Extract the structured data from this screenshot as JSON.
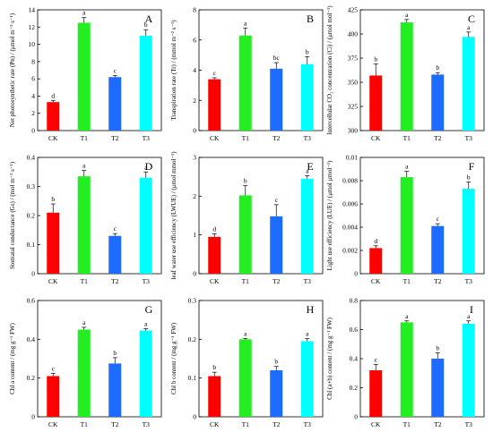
{
  "figure": {
    "categories": [
      "CK",
      "T1",
      "T2",
      "T3"
    ],
    "bar_colors": [
      "#ff0000",
      "#22ee22",
      "#1e6bff",
      "#00ffff"
    ]
  },
  "chart_data": [
    {
      "panel": "A",
      "type": "bar",
      "ylabel": "Net photosynthetic rate (Pn) / (μmol m⁻² s⁻¹)",
      "ylim": [
        0,
        14
      ],
      "yticks": [
        0,
        2,
        4,
        6,
        8,
        10,
        12,
        14
      ],
      "tick_labels": [
        "0",
        "2",
        "4",
        "6",
        "8",
        "10",
        "12",
        "14"
      ],
      "categories": [
        "CK",
        "T1",
        "T2",
        "T3"
      ],
      "values": [
        3.3,
        12.5,
        6.2,
        11.0
      ],
      "errors": [
        0.2,
        0.6,
        0.2,
        0.7
      ],
      "letters": [
        "d",
        "a",
        "c",
        "b"
      ]
    },
    {
      "panel": "B",
      "type": "bar",
      "ylabel": "Transpiration rate (Tr) / (mmol m⁻² s⁻¹)",
      "ylim": [
        0,
        8
      ],
      "yticks": [
        0,
        2,
        4,
        6,
        8
      ],
      "tick_labels": [
        "0",
        "2",
        "4",
        "6",
        "8"
      ],
      "categories": [
        "CK",
        "T1",
        "T2",
        "T3"
      ],
      "values": [
        3.4,
        6.3,
        4.1,
        4.4
      ],
      "errors": [
        0.1,
        0.5,
        0.4,
        0.5
      ],
      "letters": [
        "c",
        "a",
        "bc",
        "b"
      ]
    },
    {
      "panel": "C",
      "type": "bar",
      "ylabel": "Intercellular CO₂ concentration (Ci) / (μmol mol⁻¹)",
      "ylim": [
        300,
        425
      ],
      "yticks": [
        300,
        325,
        350,
        375,
        400,
        425
      ],
      "tick_labels": [
        "300",
        "325",
        "350",
        "375",
        "400",
        "425"
      ],
      "categories": [
        "CK",
        "T1",
        "T2",
        "T3"
      ],
      "values": [
        357,
        412,
        358,
        397
      ],
      "errors": [
        12,
        3,
        2,
        5
      ],
      "letters": [
        "b",
        "a",
        "b",
        "a"
      ]
    },
    {
      "panel": "D",
      "type": "bar",
      "ylabel": "Stomatal conductance (Gs) / (mol m⁻² s⁻¹)",
      "ylim": [
        0,
        0.4
      ],
      "yticks": [
        0,
        0.1,
        0.2,
        0.3,
        0.4
      ],
      "tick_labels": [
        "0",
        "0.1",
        "0.2",
        "0.3",
        "0.4"
      ],
      "categories": [
        "CK",
        "T1",
        "T2",
        "T3"
      ],
      "values": [
        0.21,
        0.335,
        0.13,
        0.33
      ],
      "errors": [
        0.03,
        0.02,
        0.008,
        0.02
      ],
      "letters": [
        "b",
        "a",
        "c",
        "a"
      ]
    },
    {
      "panel": "E",
      "type": "bar",
      "ylabel": "leaf water use efficiency (LWUE) / (μmol mmol⁻¹)",
      "ylim": [
        0,
        3
      ],
      "yticks": [
        0,
        1,
        2,
        3
      ],
      "tick_labels": [
        "0",
        "1",
        "2",
        "3"
      ],
      "categories": [
        "CK",
        "T1",
        "T2",
        "T3"
      ],
      "values": [
        0.95,
        2.02,
        1.48,
        2.45
      ],
      "errors": [
        0.08,
        0.25,
        0.3,
        0.08
      ],
      "letters": [
        "d",
        "b",
        "c",
        "a"
      ]
    },
    {
      "panel": "F",
      "type": "bar",
      "ylabel": "Light use efficiency (LUE) / (μmol μmol⁻¹)",
      "ylim": [
        0,
        0.01
      ],
      "yticks": [
        0,
        0.002,
        0.004,
        0.006,
        0.008,
        0.01
      ],
      "tick_labels": [
        "0",
        "0.002",
        "0.004",
        "0.006",
        "0.008",
        "0.01"
      ],
      "categories": [
        "CK",
        "T1",
        "T2",
        "T3"
      ],
      "values": [
        0.0022,
        0.0083,
        0.0041,
        0.0073
      ],
      "errors": [
        0.0002,
        0.0005,
        0.0002,
        0.0006
      ],
      "letters": [
        "d",
        "a",
        "c",
        "b"
      ]
    },
    {
      "panel": "G",
      "type": "bar",
      "ylabel": "Chl a content / (mg g⁻¹ FW)",
      "ylim": [
        0,
        0.6
      ],
      "yticks": [
        0,
        0.2,
        0.4,
        0.6
      ],
      "tick_labels": [
        "0",
        "0.2",
        "0.4",
        "0.6"
      ],
      "categories": [
        "CK",
        "T1",
        "T2",
        "T3"
      ],
      "values": [
        0.21,
        0.45,
        0.275,
        0.445
      ],
      "errors": [
        0.015,
        0.012,
        0.03,
        0.01
      ],
      "letters": [
        "c",
        "a",
        "b",
        "a"
      ]
    },
    {
      "panel": "H",
      "type": "bar",
      "ylabel": "Chl b content / (mg g⁻¹ FW)",
      "ylim": [
        0,
        0.3
      ],
      "yticks": [
        0,
        0.1,
        0.2,
        0.3
      ],
      "tick_labels": [
        "0",
        "0.1",
        "0.2",
        "0.3"
      ],
      "categories": [
        "CK",
        "T1",
        "T2",
        "T3"
      ],
      "values": [
        0.105,
        0.2,
        0.12,
        0.195
      ],
      "errors": [
        0.01,
        0.002,
        0.01,
        0.007
      ],
      "letters": [
        "b",
        "a",
        "b",
        "a"
      ]
    },
    {
      "panel": "I",
      "type": "bar",
      "ylabel": "Chl (a+b) content / (mg g⁻¹ FW)",
      "ylim": [
        0,
        0.8
      ],
      "yticks": [
        0,
        0.2,
        0.4,
        0.6,
        0.8
      ],
      "tick_labels": [
        "0",
        "0.2",
        "0.4",
        "0.6",
        "0.8"
      ],
      "categories": [
        "CK",
        "T1",
        "T2",
        "T3"
      ],
      "values": [
        0.32,
        0.65,
        0.4,
        0.64
      ],
      "errors": [
        0.04,
        0.01,
        0.04,
        0.02
      ],
      "letters": [
        "c",
        "a",
        "b",
        "a"
      ]
    }
  ]
}
